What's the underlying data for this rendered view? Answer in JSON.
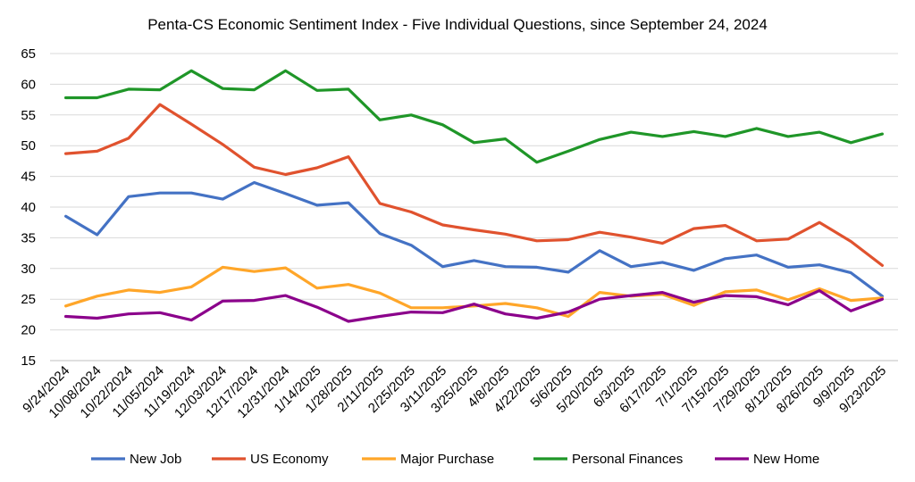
{
  "chart_data": {
    "type": "line",
    "title": "Penta-CS Economic Sentiment Index - Five Individual Questions, since September 24, 2024",
    "xlabel": "",
    "ylabel": "",
    "ylim": [
      15,
      65
    ],
    "yticks": [
      15,
      20,
      25,
      30,
      35,
      40,
      45,
      50,
      55,
      60,
      65
    ],
    "grid": true,
    "legend_position": "bottom",
    "categories": [
      "9/24/2024",
      "10/08/2024",
      "10/22/2024",
      "11/05/2024",
      "11/19/2024",
      "12/03/2024",
      "12/17/2024",
      "12/31/2024",
      "1/14/2025",
      "1/28/2025",
      "2/11/2025",
      "2/25/2025",
      "3/11/2025",
      "3/25/2025",
      "4/8/2025",
      "4/22/2025",
      "5/6/2025",
      "5/20/2025",
      "6/3/2025",
      "6/17/2025",
      "7/1/2025",
      "7/15/2025",
      "7/29/2025",
      "8/12/2025",
      "8/26/2025",
      "9/9/2025",
      "9/23/2025"
    ],
    "series": [
      {
        "name": "New Job",
        "color": "#4472C4",
        "values": [
          38.5,
          35.5,
          41.7,
          42.3,
          42.3,
          41.3,
          44.0,
          42.2,
          40.3,
          40.7,
          35.7,
          33.8,
          30.3,
          31.3,
          30.3,
          30.2,
          29.4,
          32.9,
          30.3,
          31.0,
          29.7,
          31.6,
          32.2,
          30.2,
          30.6,
          29.3,
          25.5
        ]
      },
      {
        "name": "US Economy",
        "color": "#E0522E",
        "values": [
          48.7,
          49.1,
          51.2,
          56.7,
          53.5,
          50.2,
          46.5,
          45.3,
          46.4,
          48.2,
          40.6,
          39.2,
          37.1,
          36.3,
          35.6,
          34.5,
          34.7,
          35.9,
          35.1,
          34.1,
          36.5,
          37.0,
          34.5,
          34.8,
          37.5,
          34.4,
          30.5
        ]
      },
      {
        "name": "Major Purchase",
        "color": "#FFA629",
        "values": [
          23.9,
          25.5,
          26.5,
          26.1,
          27.0,
          30.2,
          29.5,
          30.1,
          26.8,
          27.4,
          26.0,
          23.6,
          23.6,
          23.9,
          24.3,
          23.6,
          22.2,
          26.1,
          25.5,
          25.8,
          24.0,
          26.2,
          26.5,
          24.9,
          26.7,
          24.8,
          25.2
        ]
      },
      {
        "name": "Personal Finances",
        "color": "#1F9628",
        "values": [
          57.8,
          57.8,
          59.2,
          59.1,
          62.2,
          59.3,
          59.1,
          62.2,
          59.0,
          59.2,
          54.2,
          55.0,
          53.4,
          50.5,
          51.1,
          47.3,
          49.1,
          51.0,
          52.2,
          51.5,
          52.3,
          51.5,
          52.8,
          51.5,
          52.2,
          50.5,
          51.9
        ]
      },
      {
        "name": "New Home",
        "color": "#8B008B",
        "values": [
          22.2,
          21.9,
          22.6,
          22.8,
          21.6,
          24.7,
          24.8,
          25.6,
          23.7,
          21.4,
          22.2,
          22.9,
          22.8,
          24.2,
          22.6,
          21.9,
          22.9,
          25.0,
          25.6,
          26.1,
          24.5,
          25.6,
          25.4,
          24.1,
          26.4,
          23.1,
          25.0
        ]
      }
    ]
  }
}
